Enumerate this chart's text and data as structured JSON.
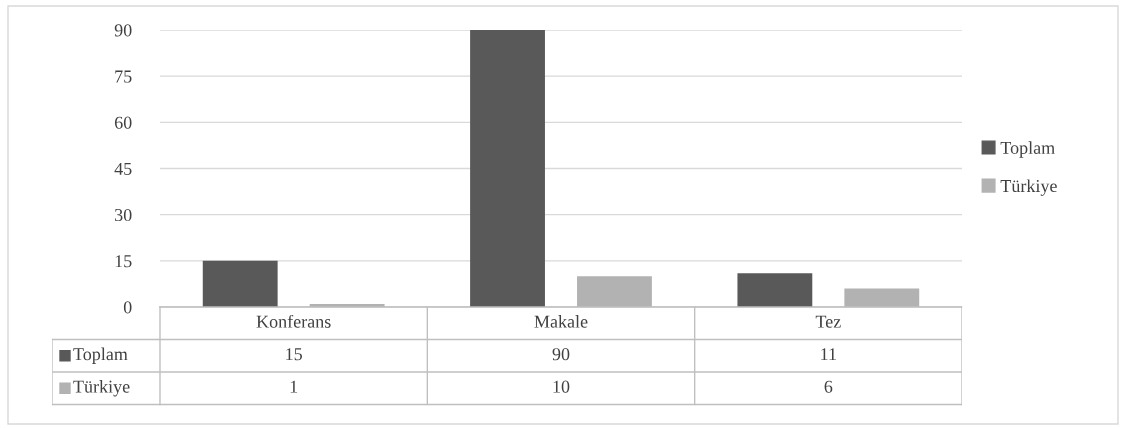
{
  "chart_data": {
    "type": "bar",
    "categories": [
      "Konferans",
      "Makale",
      "Tez"
    ],
    "series": [
      {
        "name": "Toplam",
        "color": "#595959",
        "values": [
          15,
          90,
          11
        ]
      },
      {
        "name": "Türkiye",
        "color": "#b2b2b2",
        "values": [
          1,
          10,
          6
        ]
      }
    ],
    "ylim": [
      0,
      90
    ],
    "yticks": [
      0,
      15,
      30,
      45,
      60,
      75,
      90
    ],
    "grid": "y",
    "legend": "right",
    "data_labels": true
  }
}
